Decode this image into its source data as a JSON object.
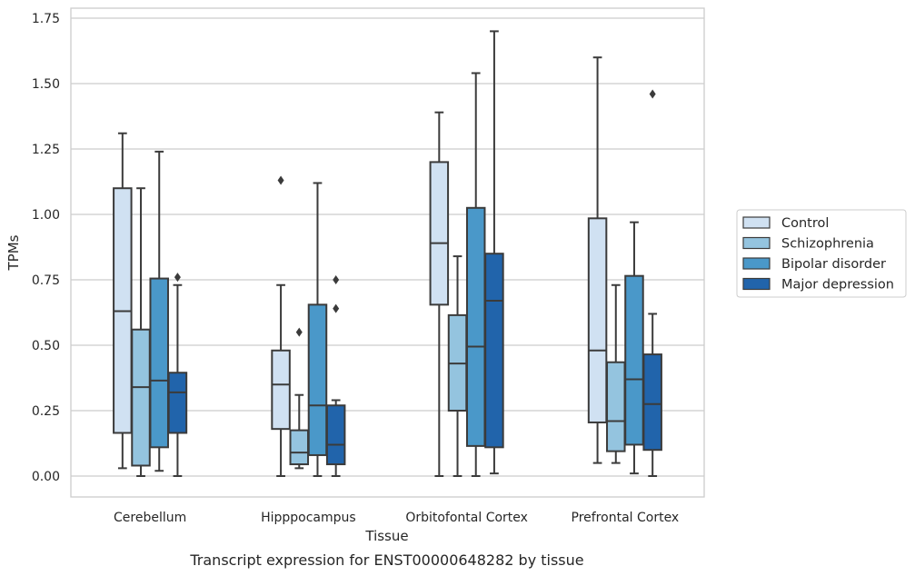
{
  "chart_data": {
    "type": "box",
    "caption": "Transcript expression for ENST00000648282 by tissue",
    "xlabel": "Tissue",
    "ylabel": "TPMs",
    "ylim": [
      -0.08,
      1.78
    ],
    "yticks": [
      0.0,
      0.25,
      0.5,
      0.75,
      1.0,
      1.25,
      1.5,
      1.75
    ],
    "ytick_labels": [
      "0.00",
      "0.25",
      "0.50",
      "0.75",
      "1.00",
      "1.25",
      "1.50",
      "1.75"
    ],
    "grid": "horizontal",
    "legend_position": "right",
    "categories": [
      "Cerebellum",
      "Hipppocampus",
      "Orbitofontal Cortex",
      "Prefrontal Cortex"
    ],
    "series": [
      {
        "name": "Control",
        "color": "#d0e1f2",
        "boxes": [
          {
            "whislo": 0.03,
            "q1": 0.165,
            "med": 0.63,
            "q3": 1.1,
            "whishi": 1.31,
            "fliers": []
          },
          {
            "whislo": 0.0,
            "q1": 0.18,
            "med": 0.35,
            "q3": 0.48,
            "whishi": 0.73,
            "fliers": [
              1.13
            ]
          },
          {
            "whislo": 0.0,
            "q1": 0.655,
            "med": 0.89,
            "q3": 1.2,
            "whishi": 1.39,
            "fliers": []
          },
          {
            "whislo": 0.05,
            "q1": 0.205,
            "med": 0.48,
            "q3": 0.985,
            "whishi": 1.6,
            "fliers": []
          }
        ]
      },
      {
        "name": "Schizophrenia",
        "color": "#94c4df",
        "boxes": [
          {
            "whislo": 0.0,
            "q1": 0.04,
            "med": 0.34,
            "q3": 0.56,
            "whishi": 1.1,
            "fliers": []
          },
          {
            "whislo": 0.03,
            "q1": 0.045,
            "med": 0.09,
            "q3": 0.175,
            "whishi": 0.31,
            "fliers": [
              0.55
            ]
          },
          {
            "whislo": 0.0,
            "q1": 0.25,
            "med": 0.43,
            "q3": 0.615,
            "whishi": 0.84,
            "fliers": []
          },
          {
            "whislo": 0.05,
            "q1": 0.095,
            "med": 0.21,
            "q3": 0.435,
            "whishi": 0.73,
            "fliers": []
          }
        ]
      },
      {
        "name": "Bipolar disorder",
        "color": "#4a98c9",
        "boxes": [
          {
            "whislo": 0.02,
            "q1": 0.11,
            "med": 0.365,
            "q3": 0.755,
            "whishi": 1.24,
            "fliers": []
          },
          {
            "whislo": 0.0,
            "q1": 0.08,
            "med": 0.27,
            "q3": 0.655,
            "whishi": 1.12,
            "fliers": []
          },
          {
            "whislo": 0.0,
            "q1": 0.115,
            "med": 0.495,
            "q3": 1.025,
            "whishi": 1.54,
            "fliers": []
          },
          {
            "whislo": 0.01,
            "q1": 0.12,
            "med": 0.37,
            "q3": 0.765,
            "whishi": 0.97,
            "fliers": []
          }
        ]
      },
      {
        "name": "Major depression",
        "color": "#2164ab",
        "boxes": [
          {
            "whislo": 0.0,
            "q1": 0.165,
            "med": 0.32,
            "q3": 0.395,
            "whishi": 0.73,
            "fliers": [
              0.76
            ]
          },
          {
            "whislo": 0.0,
            "q1": 0.045,
            "med": 0.12,
            "q3": 0.27,
            "whishi": 0.29,
            "fliers": [
              0.64,
              0.75
            ]
          },
          {
            "whislo": 0.01,
            "q1": 0.11,
            "med": 0.67,
            "q3": 0.85,
            "whishi": 1.7,
            "fliers": []
          },
          {
            "whislo": 0.0,
            "q1": 0.1,
            "med": 0.275,
            "q3": 0.465,
            "whishi": 0.62,
            "fliers": [
              1.46
            ]
          }
        ]
      }
    ]
  }
}
